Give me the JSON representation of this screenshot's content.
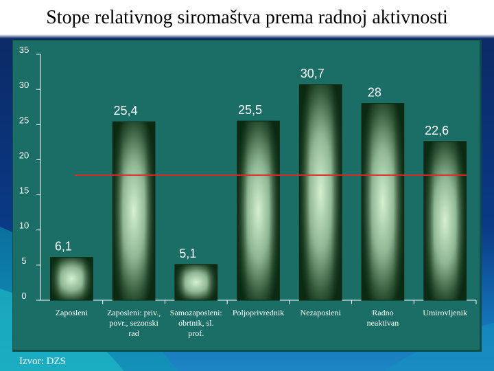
{
  "slide": {
    "title": "Stope relativnog siromaštva prema radnoj aktivnosti",
    "source": "Izvor: DZS"
  },
  "colors": {
    "panel": "#1a6e66",
    "bar_edge": "#0c2a12",
    "bar_glow": "#cfeccb",
    "average_line": "#e02828",
    "text": "#ffffff"
  },
  "chart_data": {
    "type": "bar",
    "title": "",
    "xlabel": "",
    "ylabel": "",
    "ylim": [
      0,
      35
    ],
    "yticks": [
      "0",
      "5",
      "10",
      "15",
      "20",
      "25",
      "30",
      "35"
    ],
    "grid": false,
    "legend": "none",
    "categories": [
      "Zaposleni",
      "Zaposleni: priv., povr., sezonski rad",
      "Samozaposleni: obrtnik, sl. prof.",
      "Poljoprivrednik",
      "Nezaposleni",
      "Radno neaktivan",
      "Umirovljenik"
    ],
    "category_lines": [
      [
        "Zaposleni"
      ],
      [
        "Zaposleni: priv.,",
        "povr., sezonski",
        "rad"
      ],
      [
        "Samozaposleni:",
        "obrtnik, sl.",
        "prof."
      ],
      [
        "Poljoprivrednik"
      ],
      [
        "Nezaposleni"
      ],
      [
        "Radno",
        "neaktivan"
      ],
      [
        "Umirovljenik"
      ]
    ],
    "values": [
      6.1,
      25.4,
      5.1,
      25.5,
      30.7,
      28,
      22.6
    ],
    "value_labels": [
      "6,1",
      "25,4",
      "5,1",
      "25,5",
      "30,7",
      "28",
      "22,6"
    ],
    "reference_line": {
      "value": 17.8
    }
  }
}
